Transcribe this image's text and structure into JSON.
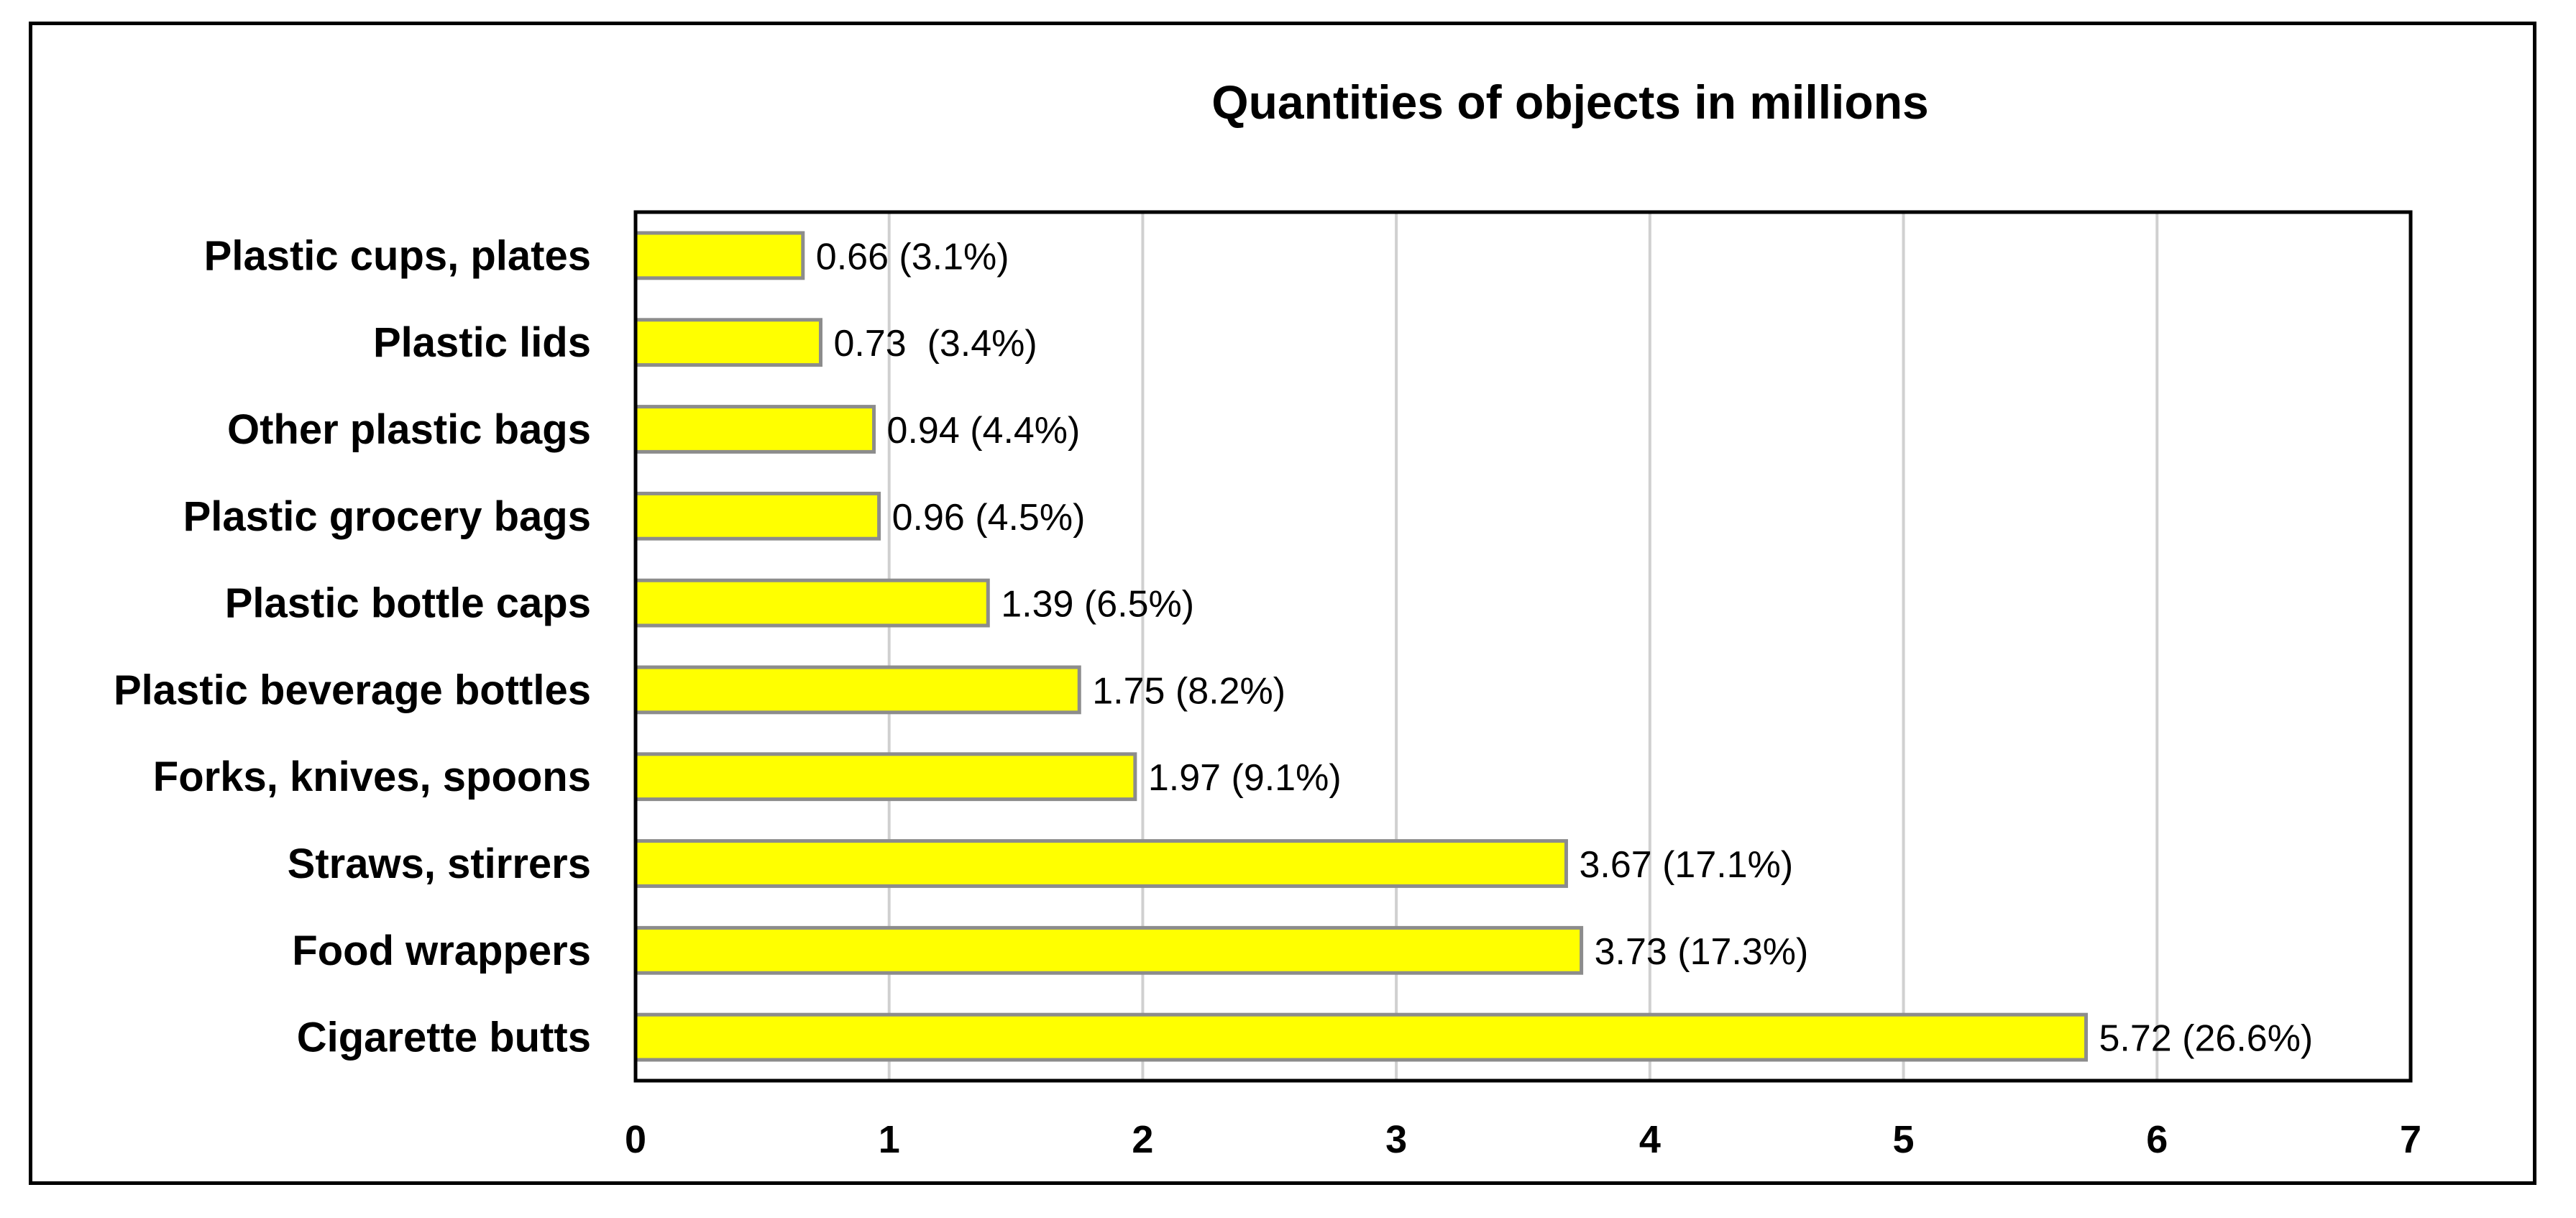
{
  "chart_data": {
    "type": "bar",
    "orientation": "horizontal",
    "title": "Quantities of objects in millions",
    "xlabel": "",
    "ylabel": "",
    "xlim": [
      0,
      7
    ],
    "x_ticks": [
      "0",
      "1",
      "2",
      "3",
      "4",
      "5",
      "6",
      "7"
    ],
    "grid": true,
    "bar_color": "#ffff00",
    "categories": [
      "Plastic cups, plates",
      "Plastic lids",
      "Other plastic bags",
      "Plastic grocery bags",
      "Plastic bottle caps",
      "Plastic beverage bottles",
      "Forks, knives, spoons",
      "Straws, stirrers",
      "Food wrappers",
      "Cigarette butts"
    ],
    "values": [
      0.66,
      0.73,
      0.94,
      0.96,
      1.39,
      1.75,
      1.97,
      3.67,
      3.73,
      5.72
    ],
    "data_labels": [
      "0.66 (3.1%)",
      "0.73  (3.4%)",
      "0.94 (4.4%)",
      "0.96 (4.5%)",
      "1.39 (6.5%)",
      "1.75 (8.2%)",
      "1.97 (9.1%)",
      "3.67 (17.1%)",
      "3.73 (17.3%)",
      "5.72 (26.6%)"
    ]
  }
}
